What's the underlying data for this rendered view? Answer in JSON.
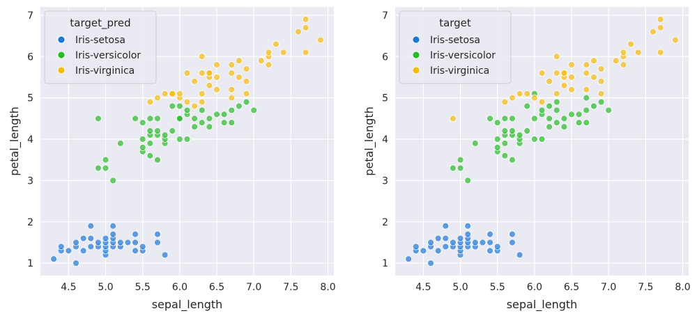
{
  "chart_data": [
    {
      "type": "scatter",
      "xlabel": "sepal_length",
      "ylabel": "petal_length",
      "xlim": [
        4.12,
        8.08
      ],
      "ylim": [
        0.7,
        7.2
      ],
      "xticks": [
        "4.5",
        "5.0",
        "5.5",
        "6.0",
        "6.5",
        "7.0",
        "7.5",
        "8.0"
      ],
      "yticks": [
        "1",
        "2",
        "3",
        "4",
        "5",
        "6",
        "7"
      ],
      "grid": true,
      "legend_title": "target_pred",
      "legend_position": "top-left",
      "series": [
        {
          "name": "Iris-setosa",
          "color": "#1f77d4",
          "points": [
            [
              4.3,
              1.1
            ],
            [
              4.4,
              1.3
            ],
            [
              4.4,
              1.4
            ],
            [
              4.5,
              1.3
            ],
            [
              4.6,
              1.0
            ],
            [
              4.6,
              1.4
            ],
            [
              4.6,
              1.5
            ],
            [
              4.7,
              1.3
            ],
            [
              4.7,
              1.6
            ],
            [
              4.8,
              1.4
            ],
            [
              4.8,
              1.6
            ],
            [
              4.8,
              1.9
            ],
            [
              4.9,
              1.4
            ],
            [
              4.9,
              1.5
            ],
            [
              5.0,
              1.2
            ],
            [
              5.0,
              1.3
            ],
            [
              5.0,
              1.4
            ],
            [
              5.0,
              1.5
            ],
            [
              5.0,
              1.6
            ],
            [
              5.1,
              1.4
            ],
            [
              5.1,
              1.5
            ],
            [
              5.1,
              1.6
            ],
            [
              5.1,
              1.7
            ],
            [
              5.1,
              1.9
            ],
            [
              5.2,
              1.4
            ],
            [
              5.2,
              1.5
            ],
            [
              5.3,
              1.5
            ],
            [
              5.4,
              1.3
            ],
            [
              5.4,
              1.5
            ],
            [
              5.4,
              1.7
            ],
            [
              5.5,
              1.3
            ],
            [
              5.5,
              1.4
            ],
            [
              5.7,
              1.5
            ],
            [
              5.7,
              1.7
            ],
            [
              5.8,
              1.2
            ]
          ]
        },
        {
          "name": "Iris-versicolor",
          "color": "#2ab92a",
          "points": [
            [
              4.9,
              3.3
            ],
            [
              4.9,
              4.5
            ],
            [
              5.0,
              3.3
            ],
            [
              5.0,
              3.5
            ],
            [
              5.1,
              3.0
            ],
            [
              5.2,
              3.9
            ],
            [
              5.4,
              4.5
            ],
            [
              5.5,
              3.7
            ],
            [
              5.5,
              3.8
            ],
            [
              5.5,
              4.0
            ],
            [
              5.5,
              4.4
            ],
            [
              5.6,
              3.6
            ],
            [
              5.6,
              3.9
            ],
            [
              5.6,
              4.1
            ],
            [
              5.6,
              4.2
            ],
            [
              5.6,
              4.5
            ],
            [
              5.7,
              3.5
            ],
            [
              5.7,
              4.1
            ],
            [
              5.7,
              4.2
            ],
            [
              5.7,
              4.5
            ],
            [
              5.8,
              3.9
            ],
            [
              5.8,
              4.0
            ],
            [
              5.8,
              4.1
            ],
            [
              5.9,
              4.2
            ],
            [
              5.9,
              4.8
            ],
            [
              6.0,
              4.0
            ],
            [
              6.0,
              4.5
            ],
            [
              6.0,
              4.5
            ],
            [
              6.0,
              4.8
            ],
            [
              6.1,
              4.0
            ],
            [
              6.1,
              4.6
            ],
            [
              6.1,
              4.7
            ],
            [
              6.2,
              4.3
            ],
            [
              6.2,
              4.5
            ],
            [
              6.3,
              4.4
            ],
            [
              6.3,
              4.7
            ],
            [
              6.4,
              4.3
            ],
            [
              6.4,
              4.5
            ],
            [
              6.5,
              4.6
            ],
            [
              6.6,
              4.4
            ],
            [
              6.6,
              4.6
            ],
            [
              6.7,
              4.4
            ],
            [
              6.7,
              4.7
            ],
            [
              6.8,
              4.8
            ],
            [
              6.9,
              4.9
            ],
            [
              7.0,
              4.7
            ]
          ]
        },
        {
          "name": "Iris-virginica",
          "color": "#f5bc0f",
          "points": [
            [
              5.6,
              4.9
            ],
            [
              5.7,
              5.0
            ],
            [
              5.8,
              5.1
            ],
            [
              5.9,
              5.1
            ],
            [
              6.0,
              5.0
            ],
            [
              6.0,
              5.1
            ],
            [
              6.1,
              5.6
            ],
            [
              6.2,
              5.4
            ],
            [
              6.3,
              5.1
            ],
            [
              6.3,
              5.6
            ],
            [
              6.3,
              6.0
            ],
            [
              6.4,
              5.3
            ],
            [
              6.4,
              5.5
            ],
            [
              6.4,
              5.6
            ],
            [
              6.5,
              5.2
            ],
            [
              6.5,
              5.5
            ],
            [
              6.5,
              5.8
            ],
            [
              6.7,
              5.0
            ],
            [
              6.7,
              5.2
            ],
            [
              6.7,
              5.6
            ],
            [
              6.7,
              5.8
            ],
            [
              6.8,
              5.5
            ],
            [
              6.8,
              5.9
            ],
            [
              6.9,
              5.1
            ],
            [
              6.9,
              5.4
            ],
            [
              6.9,
              5.7
            ],
            [
              7.1,
              5.9
            ],
            [
              7.2,
              5.8
            ],
            [
              7.2,
              6.0
            ],
            [
              7.2,
              6.1
            ],
            [
              7.3,
              6.3
            ],
            [
              7.4,
              6.1
            ],
            [
              7.6,
              6.6
            ],
            [
              7.7,
              6.1
            ],
            [
              7.7,
              6.7
            ],
            [
              7.7,
              6.9
            ],
            [
              7.9,
              6.4
            ],
            [
              6.2,
              4.8
            ],
            [
              6.3,
              4.9
            ],
            [
              6.1,
              4.9
            ],
            [
              5.9,
              5.1
            ],
            [
              6.4,
              5.6
            ]
          ]
        }
      ]
    },
    {
      "type": "scatter",
      "xlabel": "sepal_length",
      "ylabel": "petal_length",
      "xlim": [
        4.12,
        8.08
      ],
      "ylim": [
        0.7,
        7.2
      ],
      "xticks": [
        "4.5",
        "5.0",
        "5.5",
        "6.0",
        "6.5",
        "7.0",
        "7.5",
        "8.0"
      ],
      "yticks": [
        "1",
        "2",
        "3",
        "4",
        "5",
        "6",
        "7"
      ],
      "grid": true,
      "legend_title": "target",
      "legend_position": "top-left",
      "series": [
        {
          "name": "Iris-setosa",
          "color": "#1f77d4",
          "points": [
            [
              4.3,
              1.1
            ],
            [
              4.4,
              1.3
            ],
            [
              4.4,
              1.4
            ],
            [
              4.5,
              1.3
            ],
            [
              4.6,
              1.0
            ],
            [
              4.6,
              1.4
            ],
            [
              4.6,
              1.5
            ],
            [
              4.7,
              1.3
            ],
            [
              4.7,
              1.6
            ],
            [
              4.8,
              1.4
            ],
            [
              4.8,
              1.6
            ],
            [
              4.8,
              1.9
            ],
            [
              4.9,
              1.4
            ],
            [
              4.9,
              1.5
            ],
            [
              5.0,
              1.2
            ],
            [
              5.0,
              1.3
            ],
            [
              5.0,
              1.4
            ],
            [
              5.0,
              1.5
            ],
            [
              5.0,
              1.6
            ],
            [
              5.1,
              1.4
            ],
            [
              5.1,
              1.5
            ],
            [
              5.1,
              1.6
            ],
            [
              5.1,
              1.7
            ],
            [
              5.1,
              1.9
            ],
            [
              5.2,
              1.4
            ],
            [
              5.2,
              1.5
            ],
            [
              5.3,
              1.5
            ],
            [
              5.4,
              1.3
            ],
            [
              5.4,
              1.5
            ],
            [
              5.4,
              1.7
            ],
            [
              5.5,
              1.3
            ],
            [
              5.5,
              1.4
            ],
            [
              5.7,
              1.5
            ],
            [
              5.7,
              1.7
            ],
            [
              5.8,
              1.2
            ]
          ]
        },
        {
          "name": "Iris-versicolor",
          "color": "#2ab92a",
          "points": [
            [
              4.9,
              3.3
            ],
            [
              5.0,
              3.3
            ],
            [
              5.0,
              3.5
            ],
            [
              5.1,
              3.0
            ],
            [
              5.2,
              3.9
            ],
            [
              5.4,
              4.5
            ],
            [
              5.5,
              3.7
            ],
            [
              5.5,
              3.8
            ],
            [
              5.5,
              4.0
            ],
            [
              5.5,
              4.4
            ],
            [
              5.6,
              3.6
            ],
            [
              5.6,
              3.9
            ],
            [
              5.6,
              4.1
            ],
            [
              5.6,
              4.2
            ],
            [
              5.6,
              4.5
            ],
            [
              5.7,
              3.5
            ],
            [
              5.7,
              4.1
            ],
            [
              5.7,
              4.2
            ],
            [
              5.7,
              4.5
            ],
            [
              5.8,
              3.9
            ],
            [
              5.8,
              4.0
            ],
            [
              5.8,
              4.1
            ],
            [
              5.9,
              4.2
            ],
            [
              5.9,
              4.8
            ],
            [
              6.0,
              4.0
            ],
            [
              6.0,
              4.5
            ],
            [
              6.0,
              5.1
            ],
            [
              6.1,
              4.0
            ],
            [
              6.1,
              4.6
            ],
            [
              6.1,
              4.7
            ],
            [
              6.2,
              4.3
            ],
            [
              6.2,
              4.5
            ],
            [
              6.2,
              4.8
            ],
            [
              6.3,
              4.4
            ],
            [
              6.3,
              4.7
            ],
            [
              6.3,
              4.9
            ],
            [
              6.4,
              4.3
            ],
            [
              6.4,
              4.5
            ],
            [
              6.5,
              4.6
            ],
            [
              6.6,
              4.4
            ],
            [
              6.6,
              4.6
            ],
            [
              6.7,
              4.4
            ],
            [
              6.7,
              4.7
            ],
            [
              6.7,
              5.0
            ],
            [
              6.8,
              4.8
            ],
            [
              6.9,
              4.9
            ],
            [
              7.0,
              4.7
            ]
          ]
        },
        {
          "name": "Iris-virginica",
          "color": "#f5bc0f",
          "points": [
            [
              4.9,
              4.5
            ],
            [
              5.6,
              4.9
            ],
            [
              5.7,
              5.0
            ],
            [
              5.8,
              5.1
            ],
            [
              5.9,
              5.1
            ],
            [
              6.0,
              5.0
            ],
            [
              6.1,
              5.6
            ],
            [
              6.2,
              5.4
            ],
            [
              6.3,
              5.1
            ],
            [
              6.3,
              5.6
            ],
            [
              6.3,
              6.0
            ],
            [
              6.4,
              5.3
            ],
            [
              6.4,
              5.5
            ],
            [
              6.4,
              5.6
            ],
            [
              6.5,
              5.2
            ],
            [
              6.5,
              5.5
            ],
            [
              6.5,
              5.8
            ],
            [
              6.7,
              5.2
            ],
            [
              6.7,
              5.6
            ],
            [
              6.7,
              5.8
            ],
            [
              6.8,
              5.5
            ],
            [
              6.8,
              5.9
            ],
            [
              6.9,
              5.1
            ],
            [
              6.9,
              5.4
            ],
            [
              6.9,
              5.7
            ],
            [
              7.1,
              5.9
            ],
            [
              7.2,
              5.8
            ],
            [
              7.2,
              6.0
            ],
            [
              7.2,
              6.1
            ],
            [
              7.3,
              6.3
            ],
            [
              7.4,
              6.1
            ],
            [
              7.6,
              6.6
            ],
            [
              7.7,
              6.1
            ],
            [
              7.7,
              6.7
            ],
            [
              7.7,
              6.9
            ],
            [
              7.9,
              6.4
            ],
            [
              6.1,
              4.9
            ],
            [
              6.4,
              5.6
            ]
          ]
        }
      ]
    }
  ]
}
